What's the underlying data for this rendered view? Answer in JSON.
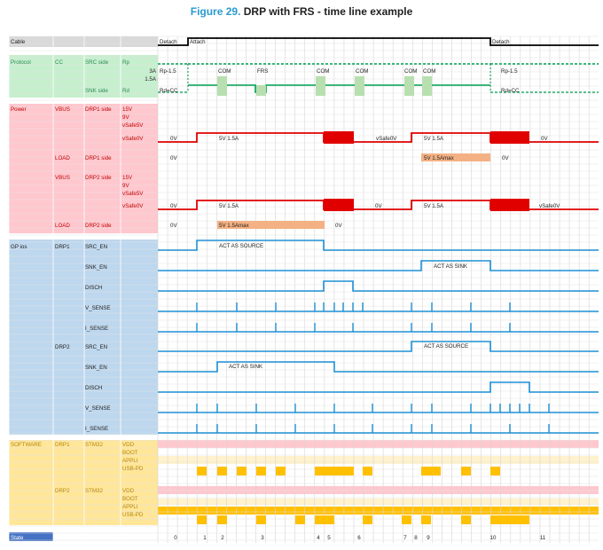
{
  "figure": {
    "number": "Figure 29.",
    "title": "DRP with FRS - time line example"
  },
  "colors": {
    "cable_bg": "#d9d9d9",
    "protocol_bg": "#c6efce",
    "power_bg": "#ffc7ce",
    "gpio_bg": "#bdd7ee",
    "software_bg": "#ffe699",
    "state_bg": "#4472c4",
    "pink_row": "#ffc7ce",
    "light_yellow": "#fff2cc",
    "gold": "#ffc000",
    "power_line": "#e00000",
    "protocol_line": "#00a050",
    "gpio_line": "#1e90d6",
    "cable_line": "#000000",
    "load_bar": "#f4b183"
  },
  "cable": {
    "label": "Cable",
    "detach": "Detach",
    "attach": "Attach",
    "detach2": "Detach"
  },
  "protocol": {
    "section": "Protocol",
    "cc": "CC",
    "src_side": "SRC side",
    "rp": "Rp",
    "snk_side": "SNK side",
    "rd": "Rd",
    "val_3a": "3A",
    "val_15a": "1.5A",
    "rp15": "Rp-1.5",
    "rdcc": "Rd=CC",
    "com": "COM",
    "frs": "FRS",
    "rp15_end": "Rp-1.5",
    "rdcc_end": "Rd=CC"
  },
  "power": {
    "section": "Power",
    "vbus": "VBUS",
    "drp1_side": "DRP1 side",
    "drp2_side": "DRP2 side",
    "load": "LOAD",
    "v15": "15V",
    "v9": "9V",
    "vsafe5": "vSafe5V",
    "vsafe0": "vSafe0V",
    "ov": "0V",
    "v5_15a": "5V 1.5A",
    "vsafe0v": "vSafe0V",
    "v5_15amax": "5V 1.5Amax"
  },
  "gpio": {
    "section": "GP ios",
    "drp1": "DRP1",
    "drp2": "DRP2",
    "src_en": "SRC_EN",
    "snk_en": "SNK_EN",
    "disch": "DISCH",
    "v_sense": "V_SENSE",
    "i_sense": "I_SENSE",
    "act_source": "ACT AS SOURCE",
    "act_sink": "ACT AS SINK"
  },
  "software": {
    "section": "SOFTWARE",
    "drp1": "DRP1",
    "drp2": "DRP2",
    "stm32": "STM32",
    "vdd": "VDD",
    "boot": "BOOT",
    "appli": "APPLI",
    "usbpd": "USB-PD"
  },
  "state": {
    "label": "State",
    "numbers": [
      "0",
      "1",
      "2",
      "3",
      "4",
      "5",
      "6",
      "7",
      "8",
      "9",
      "10",
      "11"
    ]
  }
}
